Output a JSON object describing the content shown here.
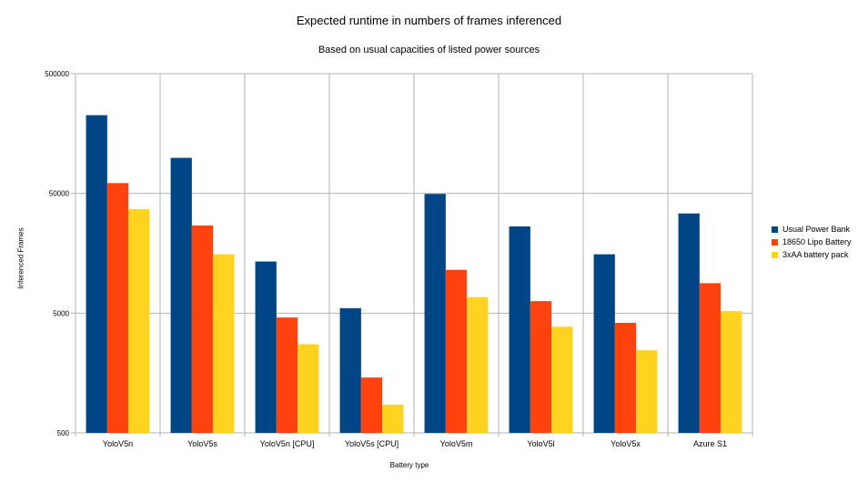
{
  "chart_data": {
    "type": "bar",
    "title": "Expected runtime in numbers of frames inferenced",
    "subtitle": "Based on usual capacities of listed power sources",
    "xlabel": "Battery type",
    "ylabel": "Inferenced Frames",
    "yscale": "log",
    "ylim": [
      500,
      500000
    ],
    "yticks": [
      "500",
      "5000",
      "50000",
      "500000"
    ],
    "grid": true,
    "legend_position": "right",
    "categories": [
      "YoloV5n",
      "YoloV5s",
      "YoloV5n [CPU]",
      "YoloV5s [CPU]",
      "YoloV5m",
      "YoloV5l",
      "YoloV5x",
      "Azure S1"
    ],
    "series": [
      {
        "name": "Usual Power Bank",
        "color": "#004586",
        "values": [
          225000,
          99000,
          13500,
          5500,
          49500,
          26500,
          15500,
          34000
        ]
      },
      {
        "name": "18650 Lipo Battery",
        "color": "#ff420e",
        "values": [
          61000,
          27000,
          4600,
          1450,
          11500,
          6300,
          4150,
          8900
        ]
      },
      {
        "name": "3xAA battery pack",
        "color": "#ffd320",
        "values": [
          37000,
          15500,
          2750,
          860,
          6800,
          3850,
          2450,
          5200
        ]
      }
    ]
  }
}
